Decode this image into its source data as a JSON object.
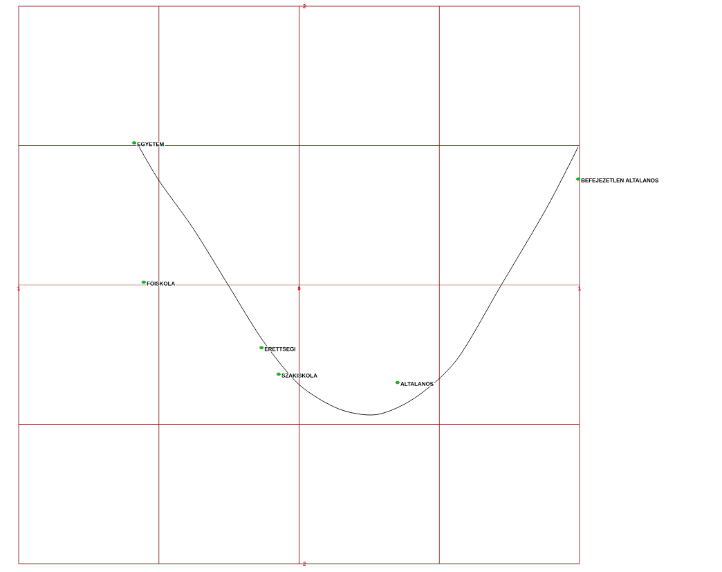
{
  "chart_data": {
    "type": "scatter",
    "xlim": [
      -1,
      1
    ],
    "ylim": [
      -2,
      2
    ],
    "xticks": [
      {
        "value": -1,
        "label": "1"
      },
      {
        "value": -0.5,
        "label": null
      },
      {
        "value": 0,
        "label": "0"
      },
      {
        "value": 0.5,
        "label": null
      },
      {
        "value": 1,
        "label": "1"
      }
    ],
    "yticks": [
      {
        "value": -2,
        "label": "2"
      },
      {
        "value": -1,
        "label": null
      },
      {
        "value": 1,
        "label": null
      },
      {
        "value": 2,
        "label": "2"
      }
    ],
    "grid": true,
    "series": [
      {
        "color": "#00cc00",
        "marker": "circle",
        "x": [
          -0.588,
          -0.554,
          -0.134,
          -0.073,
          0.351,
          0.995
        ],
        "values": [
          1.02,
          0.02,
          -0.45,
          -0.64,
          -0.7,
          0.76
        ]
      },
      {
        "type": "line",
        "color": "#000000",
        "marker": "none",
        "line_style": "solid",
        "x": [
          -0.573,
          -0.5,
          -0.376,
          -0.253,
          -0.129,
          0,
          0.142,
          0.277,
          0.413,
          0.561,
          0.721,
          0.882,
          0.995
        ],
        "values": [
          1.0,
          0.75,
          0.4,
          0.0,
          -0.4,
          -0.715,
          -0.89,
          -0.93,
          -0.81,
          -0.54,
          0.0,
          0.55,
          0.99
        ]
      }
    ],
    "annotations": [
      {
        "text": "EGYETEM",
        "x": -0.588,
        "y": 1.02
      },
      {
        "text": "FOISKOLA",
        "x": -0.554,
        "y": 0.02
      },
      {
        "text": "ERETTSEGI",
        "x": -0.134,
        "y": -0.45
      },
      {
        "text": "SZAKISKOLA",
        "x": -0.073,
        "y": -0.64
      },
      {
        "text": "ALTALANOS",
        "x": 0.351,
        "y": -0.7
      },
      {
        "text": "BEFEJEZETLEN ALTALANOS",
        "x": 0.995,
        "y": 0.76
      }
    ]
  }
}
